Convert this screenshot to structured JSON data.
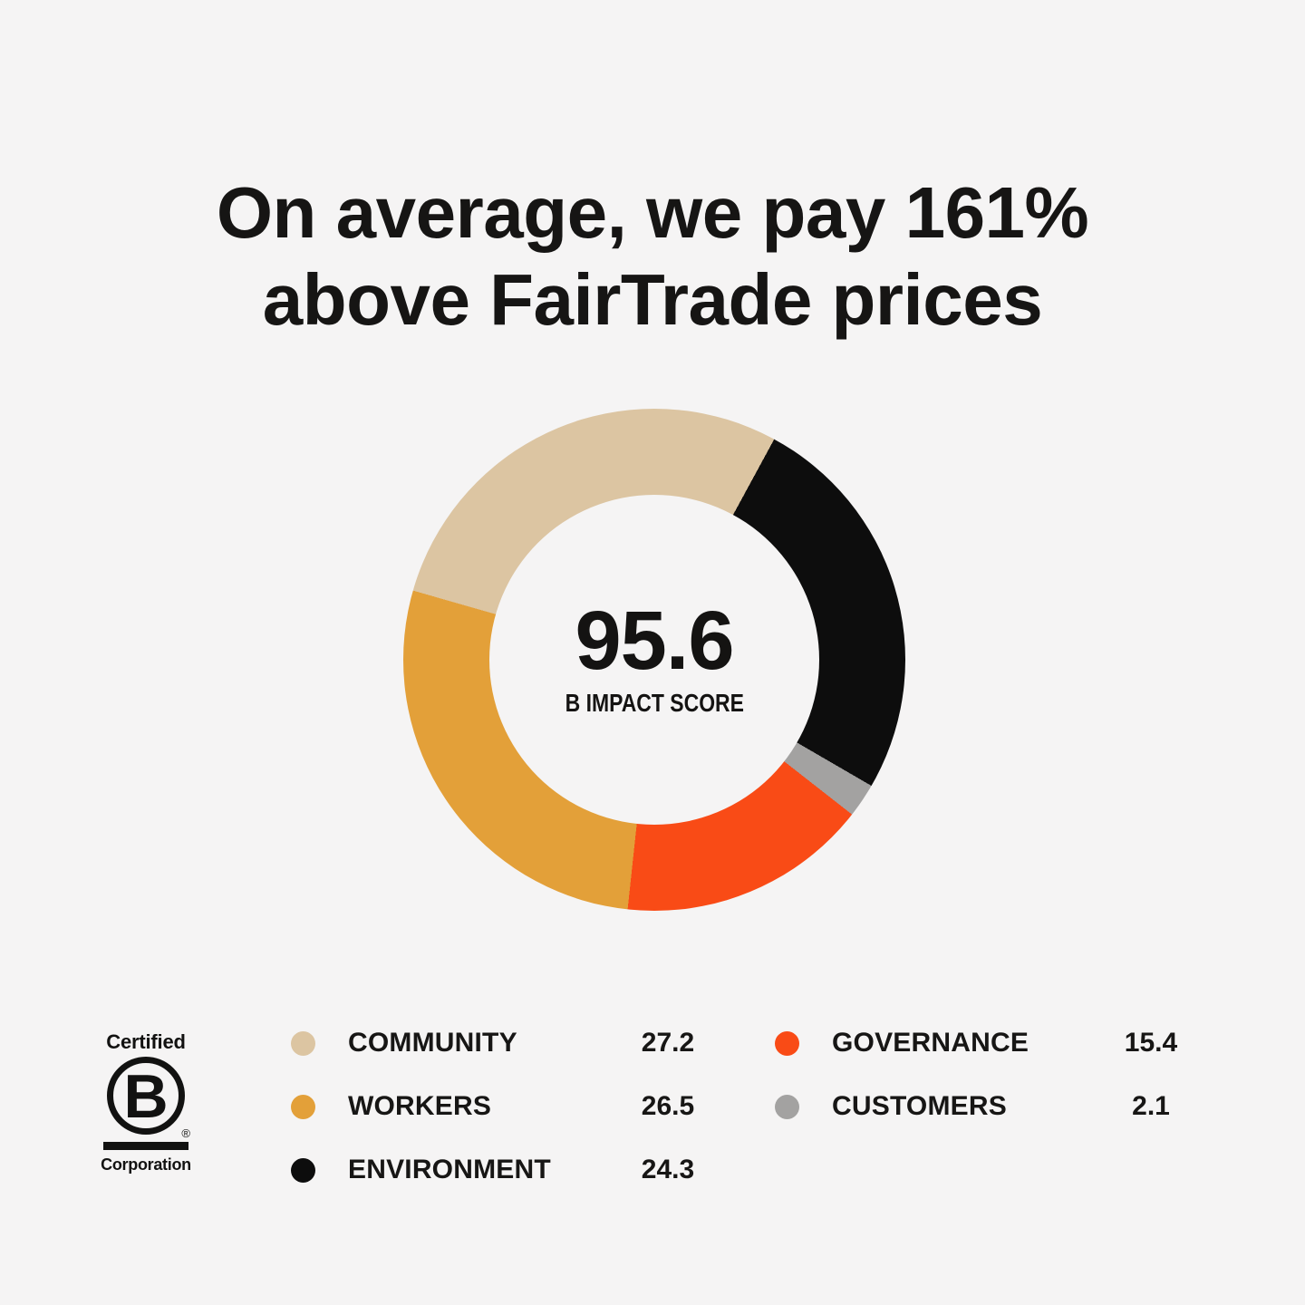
{
  "title": {
    "line1": "On average, we pay 161%",
    "line2": "above FairTrade prices"
  },
  "chart_data": {
    "type": "pie",
    "subtype": "donut",
    "title": "On average, we pay 161% above FairTrade prices",
    "center_value": "95.6",
    "center_label": "B IMPACT SCORE",
    "start_angle_deg": 286,
    "direction": "clockwise",
    "total": 95.5,
    "segments": [
      {
        "label": "COMMUNITY",
        "value": 27.2,
        "color": "#dcc5a2"
      },
      {
        "label": "ENVIRONMENT",
        "value": 24.3,
        "color": "#0d0d0d"
      },
      {
        "label": "CUSTOMERS",
        "value": 2.1,
        "color": "#a3a2a1"
      },
      {
        "label": "GOVERNANCE",
        "value": 15.4,
        "color": "#f94b16"
      },
      {
        "label": "WORKERS",
        "value": 26.5,
        "color": "#e3a039"
      }
    ],
    "legend_position": "bottom-two-columns",
    "background_color": "#f5f4f4"
  },
  "badge": {
    "certified": "Certified",
    "letter": "B",
    "registered": "®",
    "corporation": "Corporation"
  }
}
